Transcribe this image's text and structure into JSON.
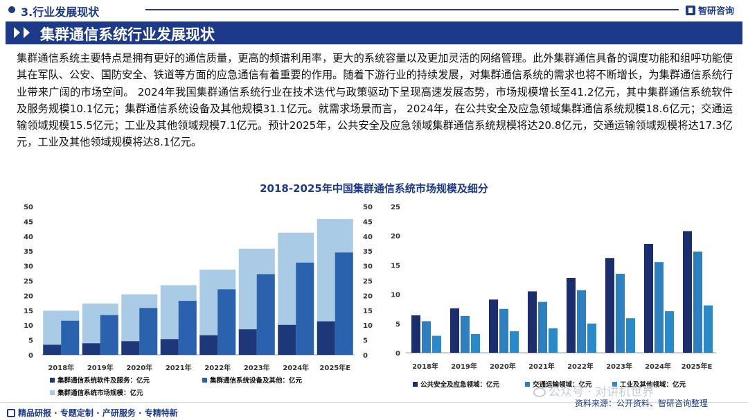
{
  "header": {
    "section_title": "3.行业发展现状",
    "logo_text": "智研咨询"
  },
  "banner": {
    "title": "集群通信系统行业发展现状"
  },
  "paragraph": "集群通信系统主要特点是拥有更好的通信质量，更高的频谱利用率，更大的系统容量以及更加灵活的网络管理。此外集群通信具备的调度功能和组呼功能使其在军队、公安、国防安全、铁道等方面的应急通信有着重要的作用。随着下游行业的持续发展，对集群通信系统的需求也将不断增长，为集群通信系统行业带来广阔的市场空间。 2024年我国集群通信系统行业在技术迭代与政策驱动下呈现高速发展态势，市场规模增长至41.2亿元，其中集群通信系统软件及服务规模10.1亿元；集群通信系统设备及其他规模31.1亿元。就需求场景而言， 2024年，在公共安全及应急领域集群通信系统规模18.6亿元；交通运输领域规模15.5亿元；工业及其他领域规模7.1亿元。预计2025年，公共安全及应急领域集群通信系统规模将达20.8亿元，交通运输领域规模将达17.3亿元，工业及其他领域规模将达8.1亿元。",
  "chart_title": "2018-2025年中国集群通信系统市场规模及细分",
  "colors": {
    "brand": "#1d3a8a",
    "total_bar": "#a9cbe6",
    "software": "#1e3778",
    "equipment": "#2b62ad",
    "public_safety": "#1b2e6e",
    "transport": "#2e7fbf",
    "industry": "#2a8ac9"
  },
  "chart_data": [
    {
      "type": "bar",
      "categories": [
        "2018年",
        "2019年",
        "2020年",
        "2021年",
        "2022年",
        "2023年",
        "2024年",
        "2025年E"
      ],
      "ylim": [
        0,
        50
      ],
      "yticks": [
        "0",
        "5",
        "10",
        "15",
        "20",
        "25",
        "30",
        "35",
        "40",
        "45",
        "50"
      ],
      "series": [
        {
          "name": "集群通信系统软件及服务：亿元",
          "axis": "left",
          "values": [
            3.4,
            3.9,
            4.6,
            5.3,
            6.6,
            8.6,
            10.1,
            11.3
          ]
        },
        {
          "name": "集群通信系统设备及其他：亿元",
          "axis": "left",
          "values": [
            11.5,
            13.4,
            15.8,
            18.2,
            22.1,
            27.2,
            31.1,
            34.5
          ]
        },
        {
          "name": "集群通信系统市场规模：亿元",
          "axis": "right",
          "values": [
            14.9,
            17.3,
            20.4,
            23.5,
            28.7,
            35.8,
            41.2,
            45.8
          ]
        }
      ]
    },
    {
      "type": "bar",
      "categories": [
        "2018年",
        "2019年",
        "2020年",
        "2021年",
        "2022年",
        "2023年",
        "2024年",
        "2025年E"
      ],
      "ylim": [
        0,
        25
      ],
      "yticks": [
        "0",
        "5",
        "10",
        "15",
        "20",
        "25"
      ],
      "series": [
        {
          "name": "公共安全及应急领域：亿元",
          "values": [
            6.4,
            7.6,
            9.1,
            10.5,
            12.8,
            16.2,
            18.6,
            20.8
          ]
        },
        {
          "name": "交通运输领域：亿元",
          "values": [
            5.4,
            6.3,
            7.5,
            8.7,
            10.7,
            13.5,
            15.5,
            17.3
          ]
        },
        {
          "name": "工业及其他领域：亿元",
          "values": [
            2.9,
            3.2,
            3.7,
            4.2,
            5.0,
            5.9,
            7.1,
            8.1
          ]
        }
      ]
    }
  ],
  "footer": {
    "left_text": "精品研报 · 专题定制 · 产研服务 · 专精特新",
    "source": "资料来源：公开资料、智研咨询整理",
    "watermark": "公众号 · 对讲机世界"
  }
}
